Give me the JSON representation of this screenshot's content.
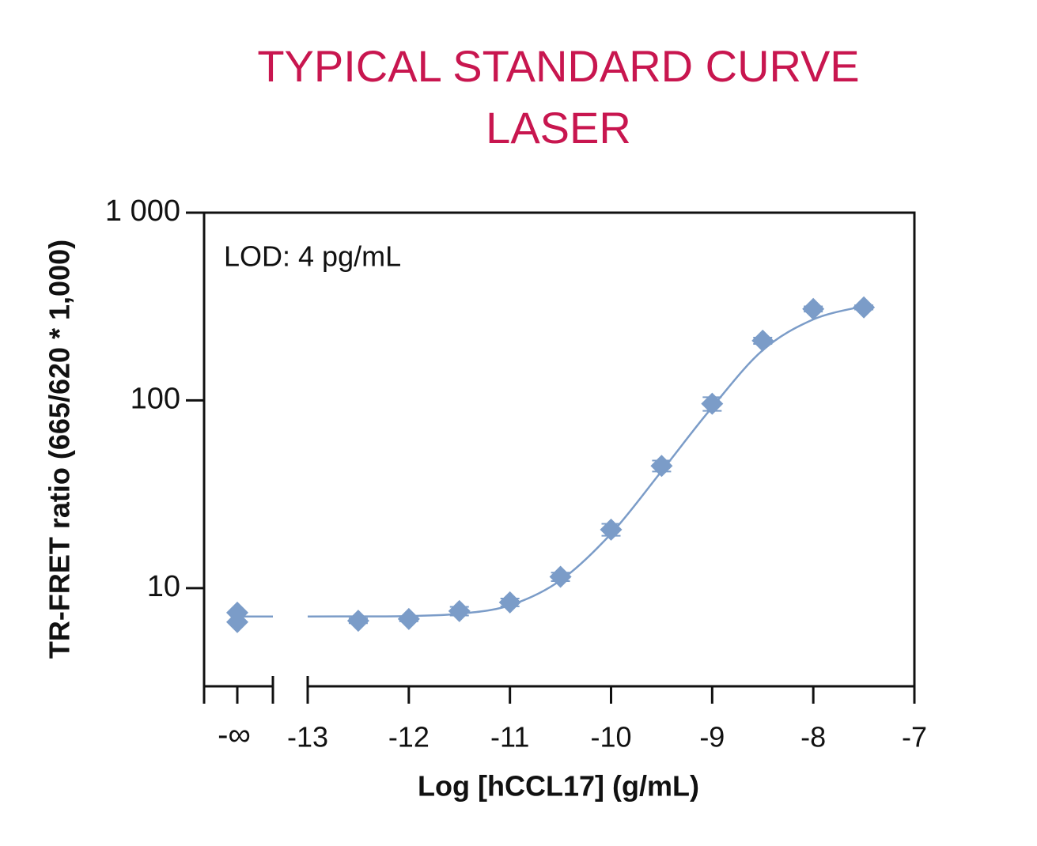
{
  "chart_data": {
    "type": "scatter",
    "title": "TYPICAL STANDARD CURVE",
    "subtitle": "LASER",
    "annotation": "LOD: 4 pg/mL",
    "x_label": "Log [hCCL17] (g/mL)",
    "y_label": "TR-FRET ratio (665/620 * 1,000)",
    "color": "#7b9cc8",
    "title_color": "#c8164f",
    "log_y": true,
    "ylim": [
      3,
      1000
    ],
    "yticks": [
      {
        "value": 10,
        "label": "10"
      },
      {
        "value": 100,
        "label": "100"
      },
      {
        "value": 1000,
        "label": "1 000"
      }
    ],
    "xlim": [
      -13,
      -7
    ],
    "xticks": [
      -13,
      -12,
      -11,
      -10,
      -9,
      -8,
      -7
    ],
    "zero_x_label": "-∞",
    "zero_values": [
      7.4,
      6.6
    ],
    "x": [
      -12.5,
      -12,
      -11.5,
      -11,
      -10.5,
      -10,
      -9.5,
      -9,
      -8.5,
      -8,
      -7.5
    ],
    "values": [
      6.7,
      6.85,
      7.55,
      8.4,
      11.5,
      20.5,
      44.8,
      96,
      208,
      307,
      313
    ],
    "errors": [
      0.2,
      0.2,
      0.4,
      0.4,
      0.6,
      1.5,
      3,
      8,
      8,
      10,
      8
    ],
    "curve": {
      "x": [
        -13,
        -12.5,
        -12,
        -11.5,
        -11,
        -10.5,
        -10,
        -9.5,
        -9,
        -8.5,
        -8,
        -7.5
      ],
      "values": [
        7.06,
        7.07,
        7.1,
        7.3,
        8.1,
        11,
        19.5,
        42,
        92,
        185,
        270,
        318
      ]
    }
  }
}
